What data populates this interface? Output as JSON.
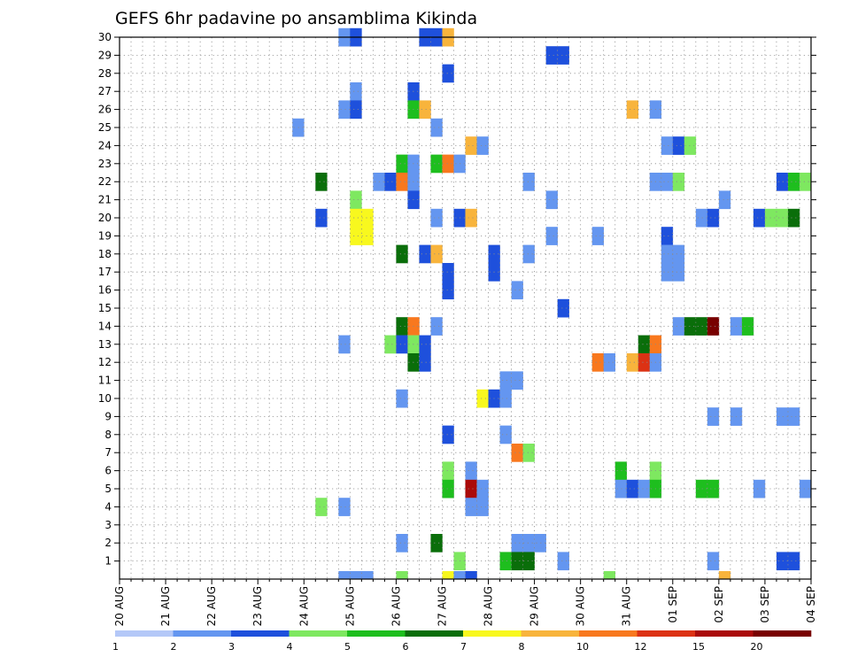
{
  "chart_data": {
    "type": "heatmap",
    "title": "GEFS 6hr padavine po ansamblima Kikinda",
    "xlabel": "",
    "ylabel": "",
    "x_tick_labels": [
      "20 AUG",
      "21 AUG",
      "22 AUG",
      "23 AUG",
      "24 AUG",
      "25 AUG",
      "26 AUG",
      "27 AUG",
      "28 AUG",
      "29 AUG",
      "30 AUG",
      "31 AUG",
      "01 SEP",
      "02 SEP",
      "03 SEP",
      "04 SEP"
    ],
    "y_tick_labels": [
      "1",
      "2",
      "3",
      "4",
      "5",
      "6",
      "7",
      "8",
      "9",
      "10",
      "11",
      "12",
      "13",
      "14",
      "15",
      "16",
      "17",
      "18",
      "19",
      "20",
      "21",
      "22",
      "23",
      "24",
      "25",
      "26",
      "27",
      "28",
      "29",
      "30"
    ],
    "y_range": [
      0,
      30
    ],
    "x_range_days": [
      0,
      15
    ],
    "time_step_hours": 6,
    "grid": true,
    "colorbar": {
      "placement": "bottom",
      "labels": [
        "1",
        "2",
        "3",
        "4",
        "5",
        "6",
        "7",
        "8",
        "10",
        "12",
        "15",
        "20"
      ],
      "colors": [
        "#b4c8f8",
        "#6496f0",
        "#1e50dc",
        "#7ee860",
        "#1ebe1e",
        "#0a6e0a",
        "#f8f81e",
        "#f8b43c",
        "#f8781e",
        "#dc3214",
        "#aa0a0a",
        "#780000"
      ]
    },
    "cells": [
      [
        30,
        19,
        1
      ],
      [
        30,
        20,
        2
      ],
      [
        30,
        26,
        2
      ],
      [
        30,
        27,
        2
      ],
      [
        30,
        28,
        7
      ],
      [
        29,
        37,
        2
      ],
      [
        29,
        38,
        2
      ],
      [
        28,
        28,
        2
      ],
      [
        27,
        20,
        1
      ],
      [
        27,
        25,
        2
      ],
      [
        26,
        19,
        1
      ],
      [
        26,
        20,
        2
      ],
      [
        26,
        25,
        4
      ],
      [
        26,
        26,
        7
      ],
      [
        26,
        44,
        7
      ],
      [
        26,
        46,
        1
      ],
      [
        25,
        15,
        1
      ],
      [
        25,
        27,
        1
      ],
      [
        24,
        30,
        7
      ],
      [
        24,
        31,
        1
      ],
      [
        24,
        47,
        1
      ],
      [
        24,
        48,
        2
      ],
      [
        24,
        49,
        3
      ],
      [
        23,
        24,
        4
      ],
      [
        23,
        25,
        1
      ],
      [
        23,
        27,
        4
      ],
      [
        23,
        28,
        8
      ],
      [
        23,
        29,
        1
      ],
      [
        22,
        17,
        5
      ],
      [
        22,
        22,
        1
      ],
      [
        22,
        23,
        2
      ],
      [
        22,
        24,
        8
      ],
      [
        22,
        25,
        1
      ],
      [
        22,
        35,
        1
      ],
      [
        22,
        46,
        1
      ],
      [
        22,
        47,
        1
      ],
      [
        22,
        48,
        3
      ],
      [
        22,
        57,
        2
      ],
      [
        22,
        58,
        4
      ],
      [
        22,
        59,
        3
      ],
      [
        21,
        20,
        3
      ],
      [
        21,
        25,
        2
      ],
      [
        21,
        37,
        1
      ],
      [
        21,
        52,
        1
      ],
      [
        20,
        17,
        2
      ],
      [
        20,
        20,
        6
      ],
      [
        20,
        21,
        6
      ],
      [
        20,
        27,
        1
      ],
      [
        20,
        29,
        2
      ],
      [
        20,
        30,
        7
      ],
      [
        20,
        50,
        1
      ],
      [
        20,
        51,
        2
      ],
      [
        20,
        55,
        2
      ],
      [
        20,
        56,
        3
      ],
      [
        20,
        57,
        3
      ],
      [
        20,
        58,
        5
      ],
      [
        19,
        20,
        6
      ],
      [
        19,
        21,
        6
      ],
      [
        19,
        37,
        1
      ],
      [
        19,
        41,
        1
      ],
      [
        19,
        47,
        2
      ],
      [
        18,
        24,
        5
      ],
      [
        18,
        26,
        2
      ],
      [
        18,
        27,
        7
      ],
      [
        18,
        32,
        2
      ],
      [
        18,
        35,
        1
      ],
      [
        18,
        47,
        1
      ],
      [
        18,
        48,
        1
      ],
      [
        17,
        28,
        2
      ],
      [
        17,
        32,
        2
      ],
      [
        17,
        47,
        1
      ],
      [
        17,
        48,
        1
      ],
      [
        16,
        28,
        2
      ],
      [
        16,
        34,
        1
      ],
      [
        15,
        38,
        2
      ],
      [
        14,
        24,
        5
      ],
      [
        14,
        25,
        8
      ],
      [
        14,
        27,
        1
      ],
      [
        14,
        48,
        1
      ],
      [
        14,
        49,
        5
      ],
      [
        14,
        50,
        5
      ],
      [
        14,
        51,
        11
      ],
      [
        14,
        53,
        1
      ],
      [
        14,
        54,
        4
      ],
      [
        13,
        19,
        1
      ],
      [
        13,
        23,
        3
      ],
      [
        13,
        24,
        2
      ],
      [
        13,
        25,
        3
      ],
      [
        13,
        26,
        2
      ],
      [
        13,
        45,
        5
      ],
      [
        13,
        46,
        8
      ],
      [
        12,
        25,
        5
      ],
      [
        12,
        26,
        2
      ],
      [
        12,
        41,
        8
      ],
      [
        12,
        42,
        1
      ],
      [
        12,
        44,
        7
      ],
      [
        12,
        45,
        9
      ],
      [
        12,
        46,
        1
      ],
      [
        11,
        33,
        1
      ],
      [
        11,
        34,
        1
      ],
      [
        10,
        24,
        1
      ],
      [
        10,
        31,
        6
      ],
      [
        10,
        32,
        2
      ],
      [
        10,
        33,
        1
      ],
      [
        9,
        51,
        1
      ],
      [
        9,
        53,
        1
      ],
      [
        9,
        57,
        1
      ],
      [
        9,
        58,
        1
      ],
      [
        8,
        28,
        2
      ],
      [
        8,
        33,
        1
      ],
      [
        7,
        34,
        8
      ],
      [
        7,
        35,
        3
      ],
      [
        6,
        28,
        3
      ],
      [
        6,
        30,
        1
      ],
      [
        6,
        43,
        4
      ],
      [
        6,
        46,
        3
      ],
      [
        5,
        28,
        4
      ],
      [
        5,
        30,
        10
      ],
      [
        5,
        31,
        1
      ],
      [
        5,
        43,
        1
      ],
      [
        5,
        44,
        2
      ],
      [
        5,
        45,
        1
      ],
      [
        5,
        46,
        4
      ],
      [
        5,
        50,
        4
      ],
      [
        5,
        51,
        4
      ],
      [
        5,
        55,
        1
      ],
      [
        5,
        59,
        1
      ],
      [
        4,
        17,
        3
      ],
      [
        4,
        19,
        1
      ],
      [
        4,
        30,
        1
      ],
      [
        4,
        31,
        1
      ],
      [
        2,
        24,
        1
      ],
      [
        2,
        27,
        5
      ],
      [
        2,
        34,
        1
      ],
      [
        2,
        35,
        1
      ],
      [
        2,
        36,
        1
      ],
      [
        1,
        29,
        3
      ],
      [
        1,
        33,
        4
      ],
      [
        1,
        34,
        5
      ],
      [
        1,
        35,
        5
      ],
      [
        1,
        38,
        1
      ],
      [
        1,
        51,
        1
      ],
      [
        1,
        57,
        2
      ],
      [
        1,
        58,
        2
      ],
      [
        0,
        19,
        1
      ],
      [
        0,
        20,
        1
      ],
      [
        0,
        21,
        1
      ],
      [
        0,
        24,
        3
      ],
      [
        0,
        28,
        6
      ],
      [
        0,
        29,
        1
      ],
      [
        0,
        30,
        2
      ],
      [
        0,
        42,
        3
      ],
      [
        0,
        52,
        7
      ]
    ]
  }
}
